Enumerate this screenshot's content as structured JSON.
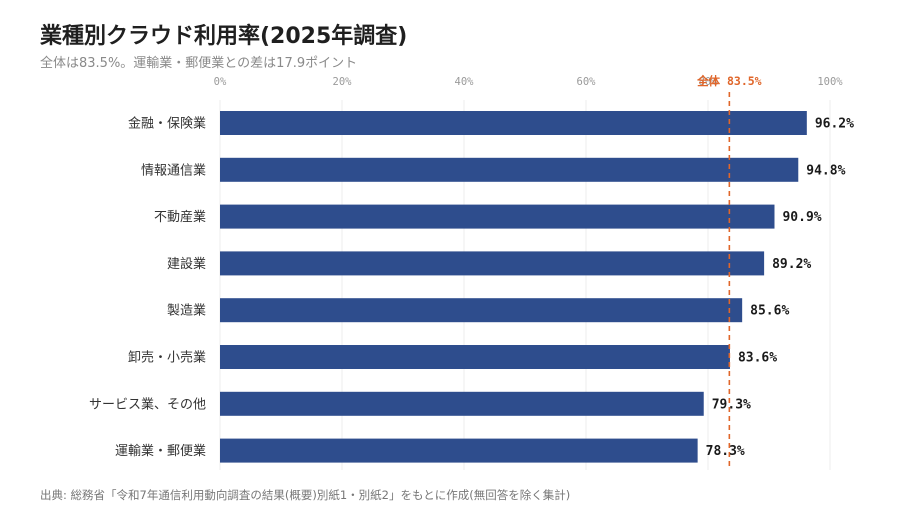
{
  "title": "業種別クラウド利用率(2025年調査)",
  "subtitle": "全体は83.5%。運輸業・郵便業との差は17.9ポイント",
  "source": "出典: 総務省「令和7年通信利用動向調査の結果(概要)別紙1・別紙2」をもとに作成(無回答を除く集計)",
  "colors": {
    "bar": "#2e4d8d",
    "reference": "#e0662a",
    "grid": "#ececec"
  },
  "chart_data": {
    "type": "bar",
    "orientation": "horizontal",
    "title": "業種別クラウド利用率(2025年調査)",
    "categories": [
      "金融・保険業",
      "情報通信業",
      "不動産業",
      "建設業",
      "製造業",
      "卸売・小売業",
      "サービス業、その他",
      "運輸業・郵便業"
    ],
    "values": [
      96.2,
      94.8,
      90.9,
      89.2,
      85.6,
      83.6,
      79.3,
      78.3
    ],
    "value_labels": [
      "96.2%",
      "94.8%",
      "90.9%",
      "89.2%",
      "85.6%",
      "83.6%",
      "79.3%",
      "78.3%"
    ],
    "xlim": [
      0,
      100
    ],
    "x_ticks": [
      0,
      20,
      40,
      60,
      80,
      100
    ],
    "x_tick_labels": [
      "0%",
      "20%",
      "40%",
      "60%",
      "80%",
      "100%"
    ],
    "reference_line": {
      "value": 83.5,
      "label": "全体 83.5%"
    },
    "grid": true,
    "axis_position": "top"
  }
}
